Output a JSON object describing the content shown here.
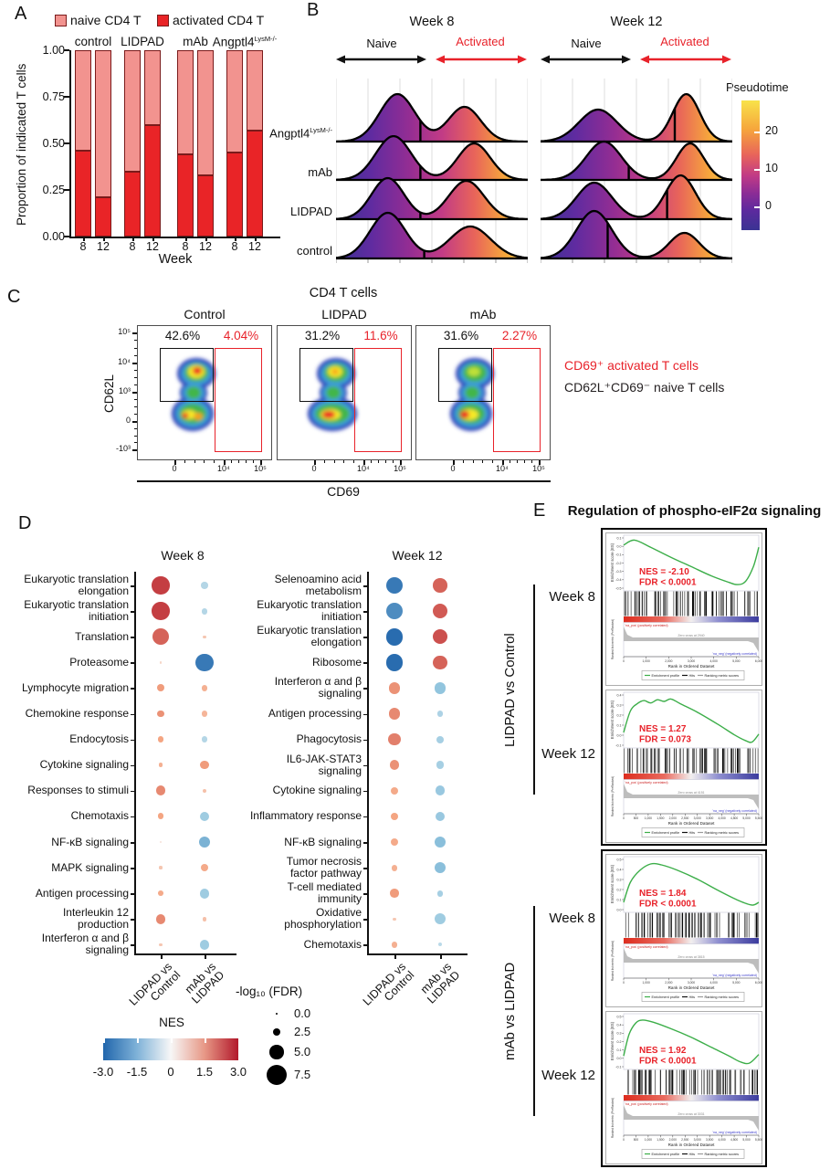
{
  "colors": {
    "activated_red": "#E8222A",
    "naive_pink": "#F2938F",
    "bar_red": "#E92427",
    "bar_border": "#7A1B1B",
    "gsea_green": "#3CAE49",
    "black": "#111111"
  },
  "panel_a": {
    "label": "A",
    "legend": [
      {
        "label": "naive CD4 T",
        "color": "#F2938F"
      },
      {
        "label": "activated CD4 T",
        "color": "#E92427"
      }
    ],
    "ylabel": "Proportion of indicated T cells",
    "xlabel": "Week",
    "yticks": [
      "1.00",
      "0.75",
      "0.50",
      "0.25",
      "0.00"
    ],
    "chart_data": {
      "type": "stacked-bar",
      "series": [
        "activated CD4 T",
        "naive CD4 T"
      ],
      "ylim": [
        0,
        1
      ],
      "groups": [
        {
          "name": "control",
          "sup": "",
          "weeks": [
            "8",
            "12"
          ],
          "activated": [
            0.46,
            0.21
          ]
        },
        {
          "name": "LIDPAD",
          "sup": "",
          "weeks": [
            "8",
            "12"
          ],
          "activated": [
            0.35,
            0.6
          ]
        },
        {
          "name": "mAb",
          "sup": "",
          "weeks": [
            "8",
            "12"
          ],
          "activated": [
            0.44,
            0.33
          ]
        },
        {
          "name": "Angptl4",
          "sup": "LysM-/-",
          "weeks": [
            "8",
            "12"
          ],
          "activated": [
            0.45,
            0.57
          ]
        }
      ]
    }
  },
  "panel_b": {
    "label": "B",
    "naive_label": "Naive",
    "activated_label": "Activated",
    "rows": [
      {
        "name": "Angptl4",
        "sup": "LysM-/-"
      },
      {
        "name": "mAb",
        "sup": ""
      },
      {
        "name": "LIDPAD",
        "sup": ""
      },
      {
        "name": "control",
        "sup": ""
      }
    ],
    "colorbar": {
      "title": "Pseudotime",
      "ticks": [
        "20",
        "10",
        "0"
      ]
    },
    "panels": [
      {
        "title": "Week 8",
        "ridges": [
          {
            "m1": 0.32,
            "h1": 52,
            "s1": 0.13,
            "m2": 0.67,
            "h2": 38,
            "s2": 0.12,
            "line": 0.44
          },
          {
            "m1": 0.3,
            "h1": 48,
            "s1": 0.13,
            "m2": 0.72,
            "h2": 40,
            "s2": 0.12,
            "line": 0.44
          },
          {
            "m1": 0.27,
            "h1": 45,
            "s1": 0.12,
            "m2": 0.68,
            "h2": 42,
            "s2": 0.13,
            "line": 0.44
          },
          {
            "m1": 0.27,
            "h1": 50,
            "s1": 0.13,
            "m2": 0.7,
            "h2": 35,
            "s2": 0.15,
            "line": 0.46
          }
        ]
      },
      {
        "title": "Week 12",
        "ridges": [
          {
            "m1": 0.3,
            "h1": 35,
            "s1": 0.14,
            "m2": 0.76,
            "h2": 52,
            "s2": 0.1,
            "line": 0.7
          },
          {
            "m1": 0.33,
            "h1": 42,
            "s1": 0.13,
            "m2": 0.78,
            "h2": 40,
            "s2": 0.1,
            "line": 0.46
          },
          {
            "m1": 0.28,
            "h1": 40,
            "s1": 0.13,
            "m2": 0.73,
            "h2": 48,
            "s2": 0.11,
            "line": 0.66
          },
          {
            "m1": 0.28,
            "h1": 52,
            "s1": 0.13,
            "m2": 0.75,
            "h2": 28,
            "s2": 0.11,
            "line": 0.35
          }
        ]
      }
    ]
  },
  "panel_c": {
    "label": "C",
    "title": "CD4 T cells",
    "ylabel": "CD62L",
    "xlabel": "CD69",
    "yticks": [
      "10⁵",
      "10⁴",
      "10³",
      "0",
      "-10³"
    ],
    "xticks": [
      "0",
      "10⁴",
      "10⁵"
    ],
    "plots": [
      {
        "title": "Control",
        "naive_pct": "42.6%",
        "activated_pct": "4.04%",
        "blob": "control"
      },
      {
        "title": "LIDPAD",
        "naive_pct": "31.2%",
        "activated_pct": "11.6%",
        "blob": "lidpad"
      },
      {
        "title": "mAb",
        "naive_pct": "31.6%",
        "activated_pct": "2.27%",
        "blob": "mab"
      }
    ],
    "legend": [
      {
        "text": "CD69⁺ activated T cells",
        "color": "#E8222A"
      },
      {
        "text": "CD62L⁺CD69⁻ naive T cells",
        "color": "#231F20"
      }
    ]
  },
  "panel_d": {
    "label": "D",
    "columns": [
      "LIDPAD vs\nControl",
      "mAb vs\nLIDPAD"
    ],
    "nes_legend": {
      "title": "NES",
      "ticks": [
        "-3.0",
        "-1.5",
        "0",
        "1.5",
        "3.0"
      ]
    },
    "size_legend": {
      "title": "-log₁₀ (FDR)",
      "ticks": [
        "0.0",
        "2.5",
        "5.0",
        "7.5"
      ],
      "values": [
        0,
        2.5,
        5,
        7.5
      ]
    },
    "plots": [
      {
        "title": "Week 8",
        "rows": [
          {
            "name": "Eukaryotic translation\nelongation",
            "nes": [
              2.6,
              -1.0
            ],
            "fdr": [
              6.5,
              2.0
            ]
          },
          {
            "name": "Eukaryotic translation\ninitiation",
            "nes": [
              2.6,
              -1.0
            ],
            "fdr": [
              6.5,
              1.8
            ]
          },
          {
            "name": "Translation",
            "nes": [
              2.2,
              0.9
            ],
            "fdr": [
              6.0,
              0.4
            ]
          },
          {
            "name": "Proteasome",
            "nes": [
              0.6,
              -2.7
            ],
            "fdr": [
              0.3,
              6.5
            ]
          },
          {
            "name": "Lymphocyte migration",
            "nes": [
              1.6,
              1.3
            ],
            "fdr": [
              2.2,
              1.8
            ]
          },
          {
            "name": "Chemokine response",
            "nes": [
              1.7,
              1.2
            ],
            "fdr": [
              2.2,
              1.8
            ]
          },
          {
            "name": "Endocytosis",
            "nes": [
              1.5,
              -1.0
            ],
            "fdr": [
              1.8,
              1.8
            ]
          },
          {
            "name": "Cytokine signaling",
            "nes": [
              1.3,
              1.6
            ],
            "fdr": [
              1.0,
              2.8
            ]
          },
          {
            "name": "Responses to stimuli",
            "nes": [
              1.8,
              1.0
            ],
            "fdr": [
              3.2,
              0.8
            ]
          },
          {
            "name": "Chemotaxis",
            "nes": [
              1.5,
              -1.3
            ],
            "fdr": [
              1.8,
              3.2
            ]
          },
          {
            "name": "NF-κB signaling",
            "nes": [
              0.4,
              -1.8
            ],
            "fdr": [
              0.2,
              3.8
            ]
          },
          {
            "name": "MAPK signaling",
            "nes": [
              0.9,
              1.4
            ],
            "fdr": [
              0.5,
              2.2
            ]
          },
          {
            "name": "Antigen processing",
            "nes": [
              1.4,
              -1.3
            ],
            "fdr": [
              1.4,
              3.2
            ]
          },
          {
            "name": "Interleukin 12\nproduction",
            "nes": [
              1.8,
              1.0
            ],
            "fdr": [
              3.2,
              0.9
            ]
          },
          {
            "name": "Interferon α and β\nsignaling",
            "nes": [
              0.9,
              -1.3
            ],
            "fdr": [
              0.6,
              3.2
            ]
          }
        ]
      },
      {
        "title": "Week 12",
        "rows": [
          {
            "name": "Selenoamino acid\nmetabolism",
            "nes": [
              -2.7,
              2.2
            ],
            "fdr": [
              6.0,
              5.0
            ]
          },
          {
            "name": "Eukaryotic translation\ninitiation",
            "nes": [
              -2.4,
              2.3
            ],
            "fdr": [
              6.0,
              5.2
            ]
          },
          {
            "name": "Eukaryotic translation\nelongation",
            "nes": [
              -2.9,
              2.4
            ],
            "fdr": [
              6.2,
              5.2
            ]
          },
          {
            "name": "Ribosome",
            "nes": [
              -2.9,
              2.2
            ],
            "fdr": [
              6.2,
              5.0
            ]
          },
          {
            "name": "Interferon α and β\nsignaling",
            "nes": [
              1.7,
              -1.5
            ],
            "fdr": [
              3.8,
              3.8
            ]
          },
          {
            "name": "Antigen processing",
            "nes": [
              1.8,
              -1.1
            ],
            "fdr": [
              3.8,
              1.8
            ]
          },
          {
            "name": "Phagocytosis",
            "nes": [
              1.9,
              -1.2
            ],
            "fdr": [
              4.2,
              2.2
            ]
          },
          {
            "name": "IL6-JAK-STAT3\nsignaling",
            "nes": [
              1.7,
              -1.2
            ],
            "fdr": [
              3.2,
              2.4
            ]
          },
          {
            "name": "Cytokine signaling",
            "nes": [
              1.4,
              -1.4
            ],
            "fdr": [
              2.4,
              3.2
            ]
          },
          {
            "name": "Inflammatory response",
            "nes": [
              1.5,
              -1.4
            ],
            "fdr": [
              2.4,
              3.2
            ]
          },
          {
            "name": "NF-κB signaling",
            "nes": [
              1.4,
              -1.6
            ],
            "fdr": [
              2.4,
              3.8
            ]
          },
          {
            "name": "Tumor necrosis\nfactor pathway",
            "nes": [
              1.3,
              -1.6
            ],
            "fdr": [
              1.8,
              3.8
            ]
          },
          {
            "name": "T-cell mediated\nimmunity",
            "nes": [
              1.6,
              -1.2
            ],
            "fdr": [
              2.8,
              1.8
            ]
          },
          {
            "name": "Oxidative\nphosphorylation",
            "nes": [
              0.9,
              -1.3
            ],
            "fdr": [
              0.5,
              3.8
            ]
          },
          {
            "name": "Chemotaxis",
            "nes": [
              1.3,
              -0.9
            ],
            "fdr": [
              1.8,
              0.8
            ]
          }
        ]
      }
    ]
  },
  "panel_e": {
    "label": "E",
    "title": "Regulation of phospho-eIF2α signaling",
    "labels": {
      "ylabel_es": "Enrichment score (ES)",
      "ylabel_rank": "Ranked list metric (PreRanked)",
      "xlabel": "Rank in Ordered Dataset",
      "pos_text": "'na_pos' (positively correlated)",
      "neg_text": "'na_neg' (negatively correlated)",
      "legend": [
        "Enrichment profile",
        "Hits",
        "Ranking metric scores"
      ]
    },
    "groups": [
      {
        "side_label": "LIDPAD vs Control",
        "plots": [
          {
            "week": "Week 8",
            "nes": "NES = -2.10",
            "fdr": "FDR < 0.0001",
            "type": "neg",
            "es_ticks": [
              "0.1",
              "0.0",
              "-0.1",
              "-0.2",
              "-0.3",
              "-0.4",
              "-0.5"
            ],
            "xticks": [
              "0",
              "1,000",
              "2,000",
              "3,000",
              "4,000",
              "5,000",
              "6,000"
            ],
            "zero_cross": "Zero cross at 2940",
            "seed": 7
          },
          {
            "week": "Week 12",
            "nes": "NES = 1.27",
            "fdr": "FDR = 0.073",
            "type": "pos1",
            "es_ticks": [
              "0.4",
              "0.3",
              "0.2",
              "0.1",
              "0.0",
              "-0.1"
            ],
            "xticks": [
              "0",
              "500",
              "1,000",
              "1,500",
              "2,000",
              "2,500",
              "3,000",
              "3,500",
              "4,000",
              "4,500",
              "5,000",
              "5,500"
            ],
            "zero_cross": "Zero cross at 4151",
            "seed": 13
          }
        ]
      },
      {
        "side_label": "mAb vs LIDPAD",
        "plots": [
          {
            "week": "Week 8",
            "nes": "NES = 1.84",
            "fdr": "FDR < 0.0001",
            "type": "pos2",
            "es_ticks": [
              "0.5",
              "0.4",
              "0.3",
              "0.2",
              "0.1",
              "0.0"
            ],
            "xticks": [
              "0",
              "1,000",
              "2,000",
              "3,000",
              "4,000",
              "5,000",
              "6,000"
            ],
            "zero_cross": "Zero cross at 3815",
            "seed": 23
          },
          {
            "week": "Week 12",
            "nes": "NES = 1.92",
            "fdr": "FDR < 0.0001",
            "type": "pos3",
            "es_ticks": [
              "0.5",
              "0.4",
              "0.3",
              "0.2",
              "0.1",
              "0.0",
              "-0.1"
            ],
            "xticks": [
              "0",
              "500",
              "1,000",
              "1,500",
              "2,000",
              "2,500",
              "3,000",
              "3,500",
              "4,000",
              "4,500",
              "5,000",
              "5,500"
            ],
            "zero_cross": "Zero cross at 3031",
            "seed": 31
          }
        ]
      }
    ]
  }
}
